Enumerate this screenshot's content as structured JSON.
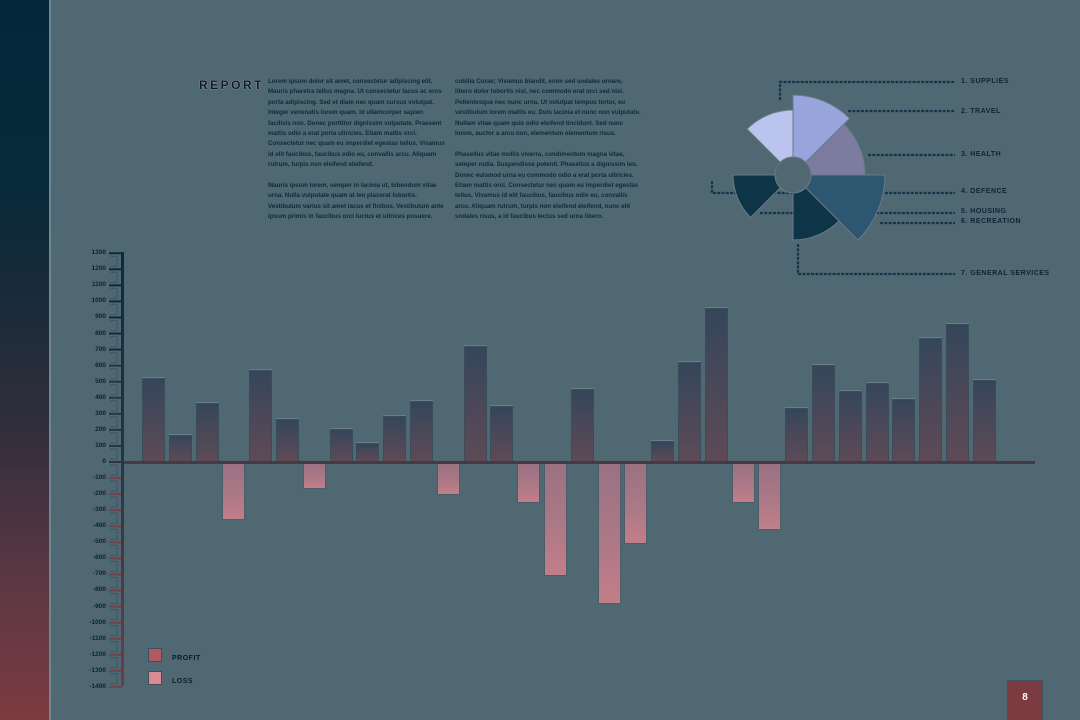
{
  "report": {
    "title": "REPORT",
    "column1": [
      "Lorem ipsum dolor sit amet, consectetur adipiscing elit. Mauris pharetra tellus magna. Ut consectetur lacus ac eros porta adipiscing. Sed et diam nec quam cursus volutpat. Integer venenatis lorem quam. Id ullamcorper sapien facilisis non. Donec porttitor dignissim vulputate. Praesent mattis odio a erat porta ultricies. Etiam mattis orci. Consectetur nec quam eu imperdiet egestas tellus. Vivamus id elit faucibus, faucibus odio eu, convallis arcu. Aliquam rutrum, turpis non eleifend eleifend.",
      "Mauris ipsum lorem, semper in lacinia ut, bibendum vitae urna. Nulla vulputate quam at leo placerat lobortis. Vestibulum varius sit amet lacus et finibus. Vestibulum ante ipsum primis in faucibus orci luctus et ultrices posuere."
    ],
    "column2": [
      "cubilia Curae; Vivamus blandit, enim sed sodales ornare, libero dolor lobortis nisl, nec commodo erat orci sed nisl. Pellentesque nec nunc urna. Ut volutpat tempus tortor, eu vestibulum lorem mattis eu. Duis lacinia et nunc non vulputate. Nullam vitae quam quis odio eleifend tincidunt. Sed nunc lorem, auctor a arcu non, elementum elementum risus.",
      "Phasellus vitae mollis viverra, condimentum magna vitae, semper nulla. Suspendisse potenti. Phasellus a dignissim leo. Donec euismod urna eu commodo odio a erat porta ultricies. Etiam mattis orci. Consectetur nec quam eu imperdiet egestas tellus. Vivamus id elit faucibus, faucibus odio eu, convallis arcu. Aliquam rutrum, turpis non eleifend eleifend, nunc elit sodales risus, a id faucibus lectus sed urna libero."
    ]
  },
  "page": {
    "number": "8"
  },
  "colors": {
    "background": "#4f6872",
    "profit_top": "#35465a",
    "profit_bottom": "#5e4a56",
    "loss_top": "#9a7283",
    "loss_bottom": "#c27e89",
    "legend_profit": "#b25a63",
    "legend_loss": "#d98a93",
    "page_badge": "#7b3b40"
  },
  "chart_data": [
    {
      "type": "polar-area",
      "title": "",
      "legend_position": "right",
      "categories": [
        "1. SUPPLIES",
        "2. TRAVEL",
        "3. HEALTH",
        "4. DEFENCE",
        "5. HOUSING",
        "6. RECREATION",
        "7. GENERAL SERVICES"
      ],
      "segments": [
        {
          "start_deg": 0,
          "end_deg": 45,
          "radius": 80,
          "color": "#97a5dc"
        },
        {
          "start_deg": 45,
          "end_deg": 90,
          "radius": 72,
          "color": "#7b7ca0"
        },
        {
          "start_deg": 90,
          "end_deg": 135,
          "radius": 92,
          "color": "#2d5670"
        },
        {
          "start_deg": 135,
          "end_deg": 180,
          "radius": 65,
          "color": "#0d3447"
        },
        {
          "start_deg": 225,
          "end_deg": 270,
          "radius": 60,
          "color": "#0d3447"
        },
        {
          "start_deg": 315,
          "end_deg": 360,
          "radius": 65,
          "color": "#bac4ec"
        }
      ],
      "inner_radius": 18
    },
    {
      "type": "bar",
      "title": "",
      "xlabel": "",
      "ylabel": "",
      "ylim": [
        -1400,
        1300
      ],
      "yticks": [
        1300,
        1200,
        1100,
        1000,
        900,
        800,
        700,
        600,
        500,
        400,
        300,
        200,
        100,
        0,
        -100,
        -200,
        -300,
        -400,
        -500,
        -600,
        -700,
        -800,
        -900,
        -1000,
        -1100,
        -1200,
        -1300,
        -1400
      ],
      "grid": false,
      "legend": [
        "PROFIT",
        "LOSS"
      ],
      "legend_position": "bottom-left",
      "values": [
        520,
        167,
        365,
        -360,
        570,
        266,
        -167,
        204,
        118,
        285,
        378,
        -204,
        725,
        347,
        -254,
        -712,
        452,
        -885,
        -508,
        130,
        620,
        960,
        -254,
        -421,
        334,
        607,
        440,
        495,
        390,
        774,
        861,
        508
      ],
      "series": [
        {
          "name": "PROFIT",
          "values": [
            520,
            167,
            365,
            null,
            570,
            266,
            null,
            204,
            118,
            285,
            378,
            null,
            725,
            347,
            null,
            null,
            452,
            null,
            null,
            130,
            620,
            960,
            null,
            null,
            334,
            607,
            440,
            495,
            390,
            774,
            861,
            508
          ]
        },
        {
          "name": "LOSS",
          "values": [
            null,
            null,
            null,
            -360,
            null,
            null,
            -167,
            null,
            null,
            null,
            null,
            -204,
            null,
            null,
            -254,
            -712,
            null,
            -885,
            -508,
            null,
            null,
            null,
            -254,
            -421,
            null,
            null,
            null,
            null,
            null,
            null,
            null,
            null
          ]
        }
      ]
    }
  ],
  "legend": {
    "profit_label": "PROFIT",
    "loss_label": "LOSS"
  }
}
